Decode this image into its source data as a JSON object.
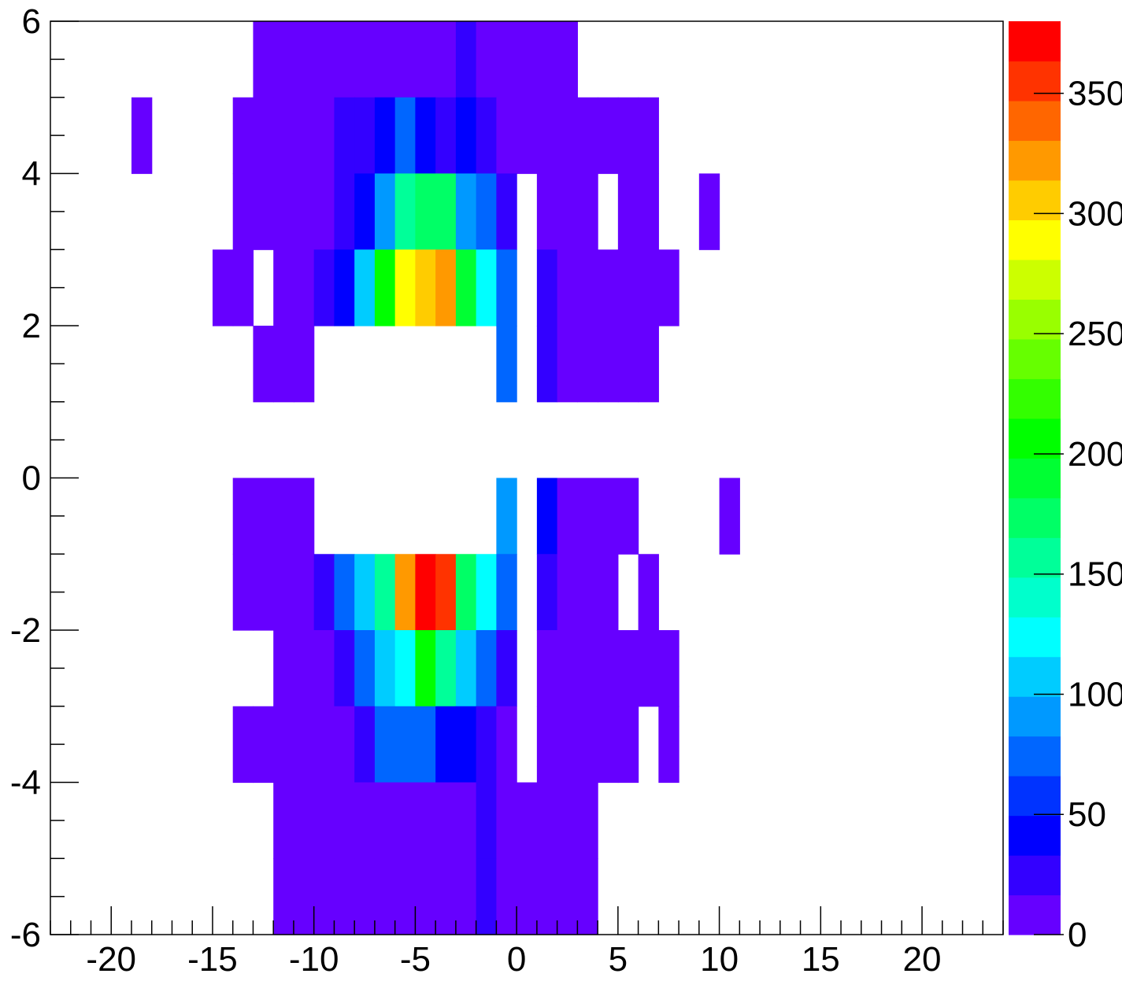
{
  "chart_data": {
    "type": "heatmap",
    "title": "",
    "xlabel": "",
    "ylabel": "",
    "xlim": [
      -23,
      24
    ],
    "ylim": [
      -6,
      6
    ],
    "x_ticks": [
      "-20",
      "-15",
      "-10",
      "-5",
      "0",
      "5",
      "10",
      "15",
      "20"
    ],
    "y_ticks": [
      "-6",
      "-4",
      "-2",
      "0",
      "2",
      "4",
      "6"
    ],
    "colorbar": {
      "range": [
        0,
        380
      ],
      "ticks": [
        "0",
        "50",
        "100",
        "150",
        "200",
        "250",
        "300",
        "350"
      ],
      "palette": [
        "#6600ff",
        "#3300ff",
        "#0000ff",
        "#0033ff",
        "#0066ff",
        "#0099ff",
        "#00ccff",
        "#00ffff",
        "#00ffcc",
        "#00ff99",
        "#00ff66",
        "#00ff33",
        "#00ff00",
        "#33ff00",
        "#66ff00",
        "#99ff00",
        "#ccff00",
        "#ffff00",
        "#ffcc00",
        "#ff9900",
        "#ff6600",
        "#ff3300",
        "#ff0000"
      ]
    },
    "cells": [
      [
        -13,
        5,
        10
      ],
      [
        -12,
        5,
        10
      ],
      [
        -11,
        5,
        10
      ],
      [
        -10,
        5,
        10
      ],
      [
        -9,
        5,
        10
      ],
      [
        -8,
        5,
        10
      ],
      [
        -7,
        5,
        10
      ],
      [
        -6,
        5,
        10
      ],
      [
        -5,
        5,
        10
      ],
      [
        -4,
        5,
        10
      ],
      [
        -3,
        5,
        30
      ],
      [
        -2,
        5,
        10
      ],
      [
        -1,
        5,
        10
      ],
      [
        0,
        5,
        10
      ],
      [
        1,
        5,
        10
      ],
      [
        2,
        5,
        10
      ],
      [
        -13,
        4,
        10
      ],
      [
        -12,
        4,
        10
      ],
      [
        -11,
        4,
        10
      ],
      [
        -10,
        4,
        10
      ],
      [
        -9,
        4,
        10
      ],
      [
        -8,
        4,
        10
      ],
      [
        -7,
        4,
        10
      ],
      [
        -6,
        4,
        10
      ],
      [
        -5,
        4,
        10
      ],
      [
        -4,
        4,
        10
      ],
      [
        -3,
        4,
        30
      ],
      [
        -2,
        4,
        10
      ],
      [
        -1,
        4,
        10
      ],
      [
        0,
        4,
        10
      ],
      [
        1,
        4,
        10
      ],
      [
        2,
        4,
        10
      ],
      [
        -19,
        4,
        10
      ],
      [
        -14,
        4,
        10
      ],
      [
        -13,
        4,
        10
      ],
      [
        -12,
        4,
        10
      ],
      [
        -11,
        4,
        10
      ],
      [
        -10,
        4,
        10
      ],
      [
        -9,
        4,
        30
      ],
      [
        -8,
        4,
        30
      ],
      [
        -7,
        4,
        45
      ],
      [
        -6,
        4,
        70
      ],
      [
        -5,
        4,
        45
      ],
      [
        -4,
        4,
        30
      ],
      [
        -3,
        4,
        45
      ],
      [
        -2,
        4,
        30
      ],
      [
        -1,
        4,
        10
      ],
      [
        1,
        4,
        10
      ],
      [
        2,
        4,
        10
      ],
      [
        3,
        4,
        10
      ],
      [
        4,
        4,
        10
      ],
      [
        5,
        4,
        10
      ],
      [
        6,
        4,
        10
      ],
      [
        -14,
        3,
        10
      ],
      [
        -13,
        3,
        10
      ],
      [
        -12,
        3,
        10
      ],
      [
        -11,
        3,
        10
      ],
      [
        -10,
        3,
        10
      ],
      [
        -9,
        3,
        30
      ],
      [
        -8,
        3,
        45
      ],
      [
        -7,
        3,
        90
      ],
      [
        -6,
        3,
        155
      ],
      [
        -5,
        3,
        170
      ],
      [
        -4,
        3,
        170
      ],
      [
        -3,
        3,
        90
      ],
      [
        -2,
        3,
        70
      ],
      [
        -1,
        3,
        30
      ],
      [
        1,
        3,
        10
      ],
      [
        2,
        3,
        10
      ],
      [
        3,
        3,
        10
      ],
      [
        5,
        3,
        10
      ],
      [
        6,
        3,
        10
      ],
      [
        9,
        3,
        10
      ],
      [
        -15,
        2,
        10
      ],
      [
        -14,
        2,
        10
      ],
      [
        -12,
        2,
        10
      ],
      [
        -11,
        2,
        10
      ],
      [
        -10,
        2,
        30
      ],
      [
        -9,
        2,
        45
      ],
      [
        -8,
        2,
        110
      ],
      [
        -7,
        2,
        210
      ],
      [
        -6,
        2,
        285
      ],
      [
        -5,
        2,
        305
      ],
      [
        -4,
        2,
        320
      ],
      [
        -3,
        2,
        185
      ],
      [
        -2,
        2,
        130
      ],
      [
        -1,
        2,
        70
      ],
      [
        1,
        2,
        30
      ],
      [
        2,
        2,
        10
      ],
      [
        3,
        2,
        10
      ],
      [
        4,
        2,
        10
      ],
      [
        5,
        2,
        10
      ],
      [
        6,
        2,
        10
      ],
      [
        7,
        2,
        10
      ],
      [
        -13,
        1,
        10
      ],
      [
        -12,
        1,
        10
      ],
      [
        -11,
        1,
        10
      ],
      [
        -1,
        1,
        70
      ],
      [
        1,
        1,
        30
      ],
      [
        2,
        1,
        10
      ],
      [
        3,
        1,
        10
      ],
      [
        4,
        1,
        10
      ],
      [
        5,
        1,
        10
      ],
      [
        6,
        1,
        10
      ],
      [
        -14,
        -1,
        10
      ],
      [
        -13,
        -1,
        10
      ],
      [
        -12,
        -1,
        10
      ],
      [
        -11,
        -1,
        10
      ],
      [
        -1,
        -1,
        90
      ],
      [
        1,
        -1,
        45
      ],
      [
        2,
        -1,
        10
      ],
      [
        3,
        -1,
        10
      ],
      [
        4,
        -1,
        10
      ],
      [
        5,
        -1,
        10
      ],
      [
        10,
        -1,
        10
      ],
      [
        -14,
        -2,
        10
      ],
      [
        -13,
        -2,
        10
      ],
      [
        -12,
        -2,
        10
      ],
      [
        -11,
        -2,
        10
      ],
      [
        -10,
        -2,
        30
      ],
      [
        -9,
        -2,
        70
      ],
      [
        -8,
        -2,
        110
      ],
      [
        -7,
        -2,
        155
      ],
      [
        -6,
        -2,
        320
      ],
      [
        -5,
        -2,
        375
      ],
      [
        -4,
        -2,
        350
      ],
      [
        -3,
        -2,
        170
      ],
      [
        -2,
        -2,
        130
      ],
      [
        -1,
        -2,
        70
      ],
      [
        1,
        -2,
        30
      ],
      [
        2,
        -2,
        10
      ],
      [
        3,
        -2,
        10
      ],
      [
        4,
        -2,
        10
      ],
      [
        6,
        -2,
        10
      ],
      [
        -12,
        -3,
        10
      ],
      [
        -11,
        -3,
        10
      ],
      [
        -10,
        -3,
        10
      ],
      [
        -9,
        -3,
        30
      ],
      [
        -8,
        -3,
        70
      ],
      [
        -7,
        -3,
        110
      ],
      [
        -6,
        -3,
        130
      ],
      [
        -5,
        -3,
        205
      ],
      [
        -4,
        -3,
        155
      ],
      [
        -3,
        -3,
        110
      ],
      [
        -2,
        -3,
        70
      ],
      [
        -1,
        -3,
        30
      ],
      [
        1,
        -3,
        10
      ],
      [
        2,
        -3,
        10
      ],
      [
        3,
        -3,
        10
      ],
      [
        4,
        -3,
        10
      ],
      [
        5,
        -3,
        10
      ],
      [
        6,
        -3,
        10
      ],
      [
        7,
        -3,
        10
      ],
      [
        -14,
        -4,
        10
      ],
      [
        -13,
        -4,
        10
      ],
      [
        -12,
        -4,
        10
      ],
      [
        -11,
        -4,
        10
      ],
      [
        -10,
        -4,
        10
      ],
      [
        -9,
        -4,
        10
      ],
      [
        -8,
        -4,
        30
      ],
      [
        -7,
        -4,
        70
      ],
      [
        -6,
        -4,
        70
      ],
      [
        -5,
        -4,
        70
      ],
      [
        -4,
        -4,
        45
      ],
      [
        -3,
        -4,
        45
      ],
      [
        -2,
        -4,
        30
      ],
      [
        -1,
        -4,
        10
      ],
      [
        1,
        -4,
        10
      ],
      [
        2,
        -4,
        10
      ],
      [
        3,
        -4,
        10
      ],
      [
        4,
        -4,
        10
      ],
      [
        5,
        -4,
        10
      ],
      [
        7,
        -4,
        10
      ],
      [
        -12,
        -5,
        10
      ],
      [
        -11,
        -5,
        10
      ],
      [
        -10,
        -5,
        10
      ],
      [
        -9,
        -5,
        10
      ],
      [
        -8,
        -5,
        10
      ],
      [
        -7,
        -5,
        10
      ],
      [
        -6,
        -5,
        10
      ],
      [
        -5,
        -5,
        10
      ],
      [
        -4,
        -5,
        10
      ],
      [
        -3,
        -5,
        10
      ],
      [
        -2,
        -5,
        30
      ],
      [
        -1,
        -5,
        10
      ],
      [
        0,
        -5,
        10
      ],
      [
        1,
        -5,
        10
      ],
      [
        2,
        -5,
        10
      ],
      [
        3,
        -5,
        10
      ],
      [
        -12,
        -6,
        10
      ],
      [
        -11,
        -6,
        10
      ],
      [
        -10,
        -6,
        10
      ],
      [
        -9,
        -6,
        10
      ],
      [
        -8,
        -6,
        10
      ],
      [
        -7,
        -6,
        10
      ],
      [
        -6,
        -6,
        10
      ],
      [
        -5,
        -6,
        10
      ],
      [
        -4,
        -6,
        10
      ],
      [
        -3,
        -6,
        10
      ],
      [
        -2,
        -6,
        30
      ],
      [
        -1,
        -6,
        10
      ],
      [
        0,
        -6,
        10
      ],
      [
        1,
        -6,
        10
      ],
      [
        2,
        -6,
        10
      ],
      [
        3,
        -6,
        10
      ]
    ]
  }
}
